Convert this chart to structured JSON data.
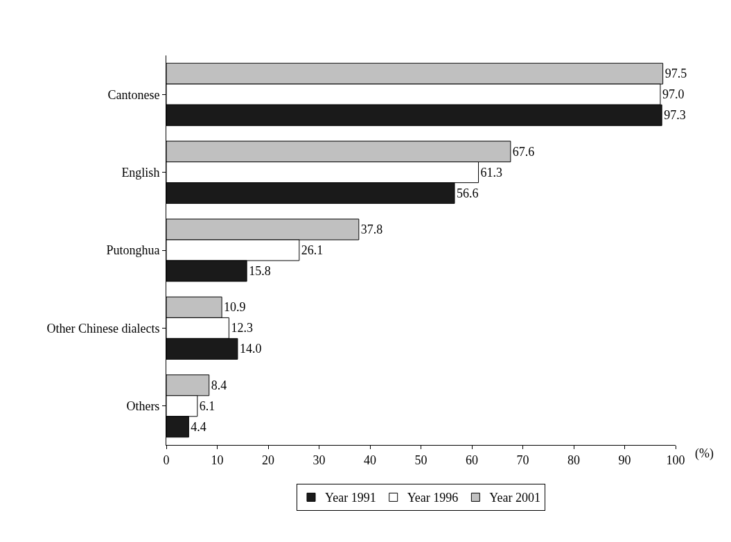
{
  "chart_data": {
    "type": "bar",
    "orientation": "horizontal",
    "categories": [
      "Cantonese",
      "English",
      "Putonghua",
      "Other Chinese dialects",
      "Others"
    ],
    "series": [
      {
        "name": "Year 1991",
        "color": "#1a1a1a",
        "values": [
          97.3,
          56.6,
          15.8,
          14.0,
          4.4
        ],
        "value_labels": [
          "97.3",
          "56.6",
          "15.8",
          "14.0",
          "4.4"
        ]
      },
      {
        "name": "Year 1996",
        "color": "#ffffff",
        "values": [
          97.0,
          61.3,
          26.1,
          12.3,
          6.1
        ],
        "value_labels": [
          "97.0",
          "61.3",
          "26.1",
          "12.3",
          "6.1"
        ]
      },
      {
        "name": "Year 2001",
        "color": "#c0c0c0",
        "values": [
          97.5,
          67.6,
          37.8,
          10.9,
          8.4
        ],
        "value_labels": [
          "97.5",
          "67.6",
          "37.8",
          "10.9",
          "8.4"
        ]
      }
    ],
    "xlim": [
      0,
      100
    ],
    "xticks": [
      0,
      10,
      20,
      30,
      40,
      50,
      60,
      70,
      80,
      90,
      100
    ],
    "xlabel": "(%)",
    "grid": false,
    "legend": "bottom"
  }
}
